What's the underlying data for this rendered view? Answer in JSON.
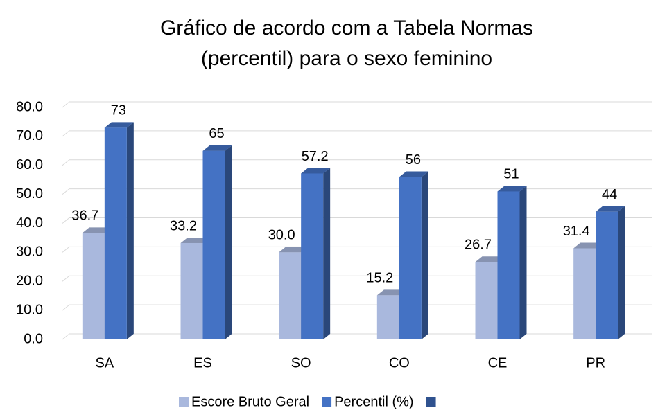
{
  "chart_data": {
    "type": "bar3d",
    "title": [
      "Gráfico de acordo com a Tabela Normas",
      "(percentil) para o sexo feminino"
    ],
    "categories": [
      "SA",
      "ES",
      "SO",
      "CO",
      "CE",
      "PR"
    ],
    "series": [
      {
        "name": "Escore Bruto Geral",
        "color": "#a9b8dd",
        "values": [
          36.7,
          33.2,
          30,
          15.2,
          26.7,
          31.4
        ],
        "value_labels": [
          "36.7",
          "33.2",
          "30.0",
          "15.2",
          "26.7",
          "31.4"
        ]
      },
      {
        "name": "Percentil (%)",
        "color": "#4472c4",
        "values": [
          73,
          65,
          57.2,
          56,
          51,
          44
        ]
      },
      {
        "color": "#2f528f",
        "values": [
          null,
          null,
          null,
          null,
          null,
          null
        ]
      }
    ],
    "ylim": [
      0,
      80
    ],
    "yticks": [
      {
        "value": 0,
        "label": "0.0"
      },
      {
        "value": 10,
        "label": "10.0"
      },
      {
        "value": 20,
        "label": "20.0"
      },
      {
        "value": 30,
        "label": "30.0"
      },
      {
        "value": 40,
        "label": "40.0"
      },
      {
        "value": 50,
        "label": "50.0"
      },
      {
        "value": 60,
        "label": "60.0"
      },
      {
        "value": 70,
        "label": "70.0"
      },
      {
        "value": 80,
        "label": "80.0"
      }
    ],
    "grid": true,
    "legend": "bottom"
  }
}
